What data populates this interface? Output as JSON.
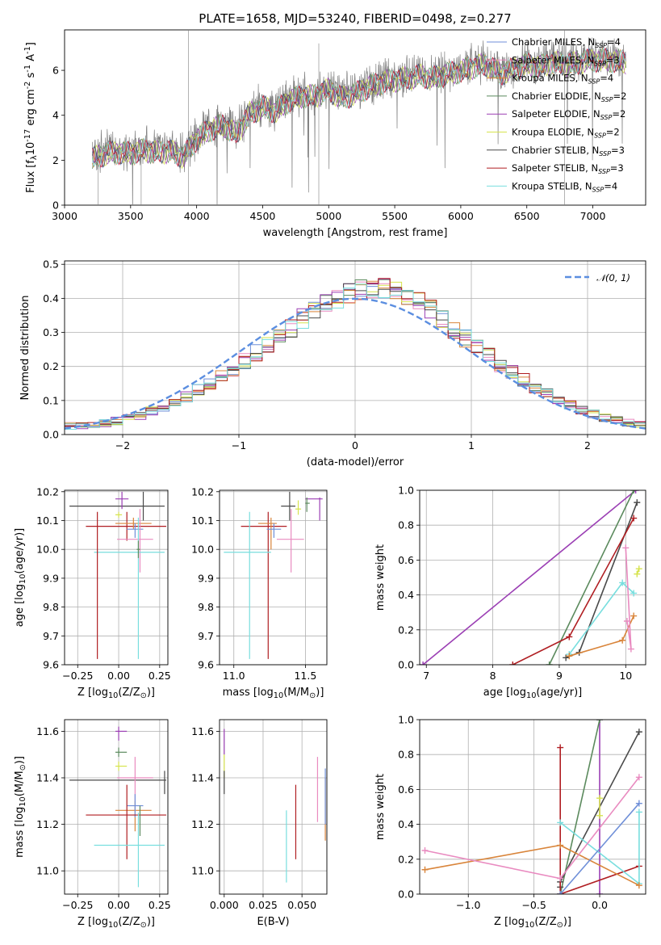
{
  "colors": {
    "Chabrier MILES": "#6f8fd8",
    "Salpeter MILES": "#e98bc0",
    "Kroupa MILES": "#d9853b",
    "Chabrier ELODIE": "#5b8a5d",
    "Salpeter ELODIE": "#9b3fb4",
    "Kroupa ELODIE": "#d6e34d",
    "Chabrier STELIB": "#4a4a4a",
    "Salpeter STELIB": "#b01e22",
    "Kroupa STELIB": "#78dede",
    "data": "#808080",
    "normal": "#5b8ee0"
  },
  "chart_data": [
    {
      "id": "spectrum",
      "type": "line",
      "title": "PLATE=1658, MJD=53240, FIBERID=0498, z=0.277",
      "xlabel": "wavelength [Angstrom, rest frame]",
      "ylabel": "Flux [f$_\\lambda$10$^{-17}$ erg cm$^{-2}$ s$^{-1}$ A$^{-1}$]",
      "xlim": [
        3000,
        7400
      ],
      "ylim": [
        0,
        7.8
      ],
      "xticks": [
        "3000",
        "3500",
        "4000",
        "4500",
        "5000",
        "5500",
        "6000",
        "6500",
        "7000"
      ],
      "yticks": [
        "0",
        "2",
        "4",
        "6"
      ],
      "grid": false,
      "legend_position": "top-right",
      "legend": [
        {
          "series": "Chabrier MILES",
          "label": "Chabrier MILES, N_SSP=4"
        },
        {
          "series": "Salpeter MILES",
          "label": "Salpeter MILES, N_SSP=3"
        },
        {
          "series": "Kroupa MILES",
          "label": "Kroupa MILES, N_SSP=4"
        },
        {
          "series": "Chabrier ELODIE",
          "label": "Chabrier ELODIE, N_SSP=2"
        },
        {
          "series": "Salpeter ELODIE",
          "label": "Salpeter ELODIE, N_SSP=2"
        },
        {
          "series": "Kroupa ELODIE",
          "label": "Kroupa ELODIE, N_SSP=2"
        },
        {
          "series": "Chabrier STELIB",
          "label": "Chabrier STELIB, N_SSP=3"
        },
        {
          "series": "Salpeter STELIB",
          "label": "Salpeter STELIB, N_SSP=3"
        },
        {
          "series": "Kroupa STELIB",
          "label": "Kroupa STELIB, N_SSP=4"
        }
      ],
      "data_wavelength_range": [
        3210,
        7250
      ],
      "continuum": {
        "x": [
          3210,
          3300,
          3400,
          3500,
          3600,
          3700,
          3800,
          3900,
          4000,
          4100,
          4200,
          4300,
          4400,
          4500,
          4600,
          4700,
          4800,
          4900,
          5000,
          5100,
          5200,
          5300,
          5400,
          5500,
          5600,
          5700,
          5800,
          5900,
          6000,
          6100,
          6200,
          6300,
          6400,
          6500,
          6600,
          6700,
          6800,
          6900,
          7000,
          7100,
          7250
        ],
        "y": [
          2.2,
          2.4,
          2.5,
          2.45,
          2.6,
          2.5,
          2.55,
          2.3,
          3.1,
          3.5,
          3.7,
          3.3,
          4.2,
          4.5,
          4.3,
          4.8,
          5.0,
          5.0,
          5.3,
          4.9,
          5.1,
          5.4,
          5.6,
          5.7,
          5.8,
          5.9,
          5.8,
          6.0,
          6.1,
          6.3,
          6.4,
          6.0,
          6.2,
          6.4,
          6.3,
          6.5,
          6.4,
          6.5,
          6.6,
          6.6,
          6.5
        ]
      },
      "noise_amplitude": 1.1
    },
    {
      "id": "residuals",
      "type": "line",
      "xlabel": "(data-model)/error",
      "ylabel": "Normed distribution",
      "xlim": [
        -2.5,
        2.5
      ],
      "ylim": [
        0,
        0.51
      ],
      "xticks": [
        -2,
        -1,
        0,
        1,
        2
      ],
      "yticks": [
        0.0,
        0.1,
        0.2,
        0.3,
        0.4,
        0.5
      ],
      "xtick_labels": [
        "−2",
        "−1",
        "0",
        "1",
        "2"
      ],
      "ytick_labels": [
        "0.0",
        "0.1",
        "0.2",
        "0.3",
        "0.4",
        "0.5"
      ],
      "grid": true,
      "legend_position": "top-right",
      "legend": [
        "𝒩(0, 1)"
      ],
      "bins": {
        "start": -2.5,
        "width": 0.1,
        "count": 50
      },
      "histogram_base": [
        0.025,
        0.027,
        0.03,
        0.034,
        0.04,
        0.048,
        0.057,
        0.068,
        0.081,
        0.096,
        0.112,
        0.13,
        0.15,
        0.171,
        0.193,
        0.216,
        0.24,
        0.265,
        0.29,
        0.315,
        0.34,
        0.362,
        0.382,
        0.4,
        0.415,
        0.425,
        0.43,
        0.43,
        0.425,
        0.41,
        0.39,
        0.365,
        0.338,
        0.31,
        0.283,
        0.256,
        0.23,
        0.205,
        0.182,
        0.16,
        0.14,
        0.12,
        0.1,
        0.085,
        0.071,
        0.06,
        0.05,
        0.042,
        0.036,
        0.032
      ],
      "histogram_spread": 0.03,
      "normal_curve": {
        "mean": 0,
        "sigma": 1,
        "peak": 0.399
      }
    },
    {
      "id": "age_vs_Z",
      "type": "scatter",
      "xlabel": "Z [log$_{10}$(Z/Z$_\\odot$)]",
      "ylabel": "age  [log$_{10}$(age/yr)]",
      "xlim": [
        -0.33,
        0.3
      ],
      "ylim": [
        9.6,
        10.205
      ],
      "xticks": [
        -0.25,
        0.0,
        0.25
      ],
      "xtick_labels": [
        "−0.25",
        "0.00",
        "0.25"
      ],
      "yticks": [
        9.6,
        9.7,
        9.8,
        9.9,
        10.0,
        10.1,
        10.2
      ],
      "ytick_labels": [
        "9.6",
        "9.7",
        "9.8",
        "9.9",
        "10.0",
        "10.1",
        "10.2"
      ],
      "grid": true,
      "points": [
        {
          "series": "Chabrier STELIB",
          "x": 0.15,
          "xlo": -0.3,
          "xhi": 0.28,
          "y": 10.15,
          "ylo": 10.1,
          "yhi": 10.2
        },
        {
          "series": "Salpeter ELODIE",
          "x": 0.02,
          "xlo": -0.02,
          "xhi": 0.06,
          "y": 10.175,
          "ylo": 10.14,
          "yhi": 10.2
        },
        {
          "series": "Kroupa ELODIE",
          "x": 0.0,
          "xlo": -0.02,
          "xhi": 0.02,
          "y": 10.12,
          "ylo": 10.11,
          "yhi": 10.13
        },
        {
          "series": "Salpeter STELIB",
          "x": 0.05,
          "xlo": -0.2,
          "xhi": 0.29,
          "y": 10.08,
          "ylo": 10.03,
          "yhi": 10.13
        },
        {
          "series": "Kroupa MILES",
          "x": 0.09,
          "xlo": -0.02,
          "xhi": 0.2,
          "y": 10.09,
          "ylo": 10.07,
          "yhi": 10.11
        },
        {
          "series": "Chabrier MILES",
          "x": 0.1,
          "xlo": 0.05,
          "xhi": 0.15,
          "y": 10.07,
          "ylo": 10.04,
          "yhi": 10.09
        },
        {
          "series": "Salpeter MILES",
          "x": 0.13,
          "xlo": -0.01,
          "xhi": 0.21,
          "y": 10.035,
          "ylo": 9.92,
          "yhi": 10.14
        },
        {
          "series": "Kroupa STELIB",
          "x": 0.12,
          "xlo": -0.15,
          "xhi": 0.28,
          "y": 9.99,
          "ylo": 9.62,
          "yhi": 10.11
        },
        {
          "series": "Salpeter STELIB",
          "x": -0.13,
          "xlo": -0.13,
          "xhi": -0.13,
          "y": 9.62,
          "ylo": 9.62,
          "yhi": 10.13
        },
        {
          "series": "Chabrier ELODIE",
          "x": 0.12,
          "xlo": 0.11,
          "xhi": 0.13,
          "y": 10.0,
          "ylo": 9.97,
          "yhi": 10.03
        }
      ]
    },
    {
      "id": "age_vs_mass",
      "type": "scatter",
      "xlabel": "mass [log$_{10}$(M/M$_\\odot$)]",
      "xlim": [
        10.9,
        11.65
      ],
      "ylim": [
        9.6,
        10.205
      ],
      "xticks": [
        11.0,
        11.5
      ],
      "xtick_labels": [
        "11.0",
        "11.5"
      ],
      "yticks": [
        9.6,
        9.7,
        9.8,
        9.9,
        10.0,
        10.1,
        10.2
      ],
      "ytick_labels": [
        "9.6",
        "9.7",
        "9.8",
        "9.9",
        "10.0",
        "10.1",
        "10.2"
      ],
      "grid": true,
      "points": [
        {
          "series": "Chabrier STELIB",
          "x": 11.39,
          "xlo": 11.33,
          "xhi": 11.43,
          "y": 10.15,
          "ylo": 10.1,
          "yhi": 10.2
        },
        {
          "series": "Salpeter ELODIE",
          "x": 11.6,
          "xlo": 11.5,
          "xhi": 11.62,
          "y": 10.175,
          "ylo": 10.1,
          "yhi": 10.18
        },
        {
          "series": "Kroupa ELODIE",
          "x": 11.45,
          "xlo": 11.43,
          "xhi": 11.47,
          "y": 10.14,
          "ylo": 10.12,
          "yhi": 10.17
        },
        {
          "series": "Chabrier ELODIE",
          "x": 11.51,
          "xlo": 11.5,
          "xhi": 11.53,
          "y": 10.16,
          "ylo": 10.13,
          "yhi": 10.18
        },
        {
          "series": "Salpeter STELIB",
          "x": 11.24,
          "xlo": 11.05,
          "xhi": 11.37,
          "y": 10.08,
          "ylo": 9.62,
          "yhi": 10.13
        },
        {
          "series": "Kroupa MILES",
          "x": 11.26,
          "xlo": 11.17,
          "xhi": 11.3,
          "y": 10.09,
          "ylo": 10.0,
          "yhi": 10.11
        },
        {
          "series": "Chabrier MILES",
          "x": 11.28,
          "xlo": 11.23,
          "xhi": 11.33,
          "y": 10.07,
          "ylo": 10.04,
          "yhi": 10.09
        },
        {
          "series": "Salpeter MILES",
          "x": 11.4,
          "xlo": 11.3,
          "xhi": 11.49,
          "y": 10.035,
          "ylo": 9.92,
          "yhi": 10.14
        },
        {
          "series": "Kroupa STELIB",
          "x": 11.11,
          "xlo": 10.93,
          "xhi": 11.26,
          "y": 9.99,
          "ylo": 9.62,
          "yhi": 10.13
        }
      ]
    },
    {
      "id": "weight_vs_age",
      "type": "line",
      "xlabel": "age  [log$_{10}$(age/yr)]",
      "ylabel": "mass weight",
      "xlim": [
        6.9,
        10.3
      ],
      "ylim": [
        0,
        1.0
      ],
      "xticks": [
        7,
        8,
        9,
        10
      ],
      "xtick_labels": [
        "7",
        "8",
        "9",
        "10"
      ],
      "yticks": [
        0.0,
        0.2,
        0.4,
        0.6,
        0.8,
        1.0
      ],
      "ytick_labels": [
        "0.0",
        "0.2",
        "0.4",
        "0.6",
        "0.8",
        "1.0"
      ],
      "grid": true,
      "series": [
        {
          "name": "Salpeter ELODIE",
          "x": [
            6.95,
            10.15
          ],
          "y": [
            0.0,
            1.0
          ]
        },
        {
          "name": "Chabrier ELODIE",
          "x": [
            8.85,
            10.12
          ],
          "y": [
            0.0,
            1.0
          ]
        },
        {
          "name": "Chabrier STELIB",
          "x": [
            9.1,
            9.3,
            10.17
          ],
          "y": [
            0.04,
            0.07,
            0.93
          ]
        },
        {
          "name": "Salpeter STELIB",
          "x": [
            8.3,
            9.15,
            10.12
          ],
          "y": [
            0.0,
            0.16,
            0.84
          ]
        },
        {
          "name": "Kroupa STELIB",
          "x": [
            9.15,
            9.95,
            10.12
          ],
          "y": [
            0.06,
            0.47,
            0.41
          ]
        },
        {
          "name": "Kroupa MILES",
          "x": [
            9.15,
            9.95,
            10.12
          ],
          "y": [
            0.05,
            0.14,
            0.28
          ]
        },
        {
          "name": "Salpeter MILES",
          "x": [
            10.0,
            10.08,
            10.02
          ],
          "y": [
            0.67,
            0.09,
            0.25
          ]
        },
        {
          "name": "Kroupa ELODIE",
          "x": [
            10.17,
            10.2
          ],
          "y": [
            0.52,
            0.55
          ]
        }
      ]
    },
    {
      "id": "mass_vs_Z",
      "type": "scatter",
      "xlabel": "Z [log$_{10}$(Z/Z$_\\odot$)]",
      "ylabel": "mass [log$_{10}$(M/M$_\\odot$)]",
      "xlim": [
        -0.33,
        0.3
      ],
      "ylim": [
        10.9,
        11.65
      ],
      "xticks": [
        -0.25,
        0.0,
        0.25
      ],
      "xtick_labels": [
        "−0.25",
        "0.00",
        "0.25"
      ],
      "yticks": [
        11.0,
        11.2,
        11.4,
        11.6
      ],
      "ytick_labels": [
        "11.0",
        "11.2",
        "11.4",
        "11.6"
      ],
      "grid": true,
      "points": [
        {
          "series": "Salpeter ELODIE",
          "x": 0.0,
          "xlo": -0.02,
          "xhi": 0.05,
          "y": 11.6,
          "ylo": 11.56,
          "yhi": 11.62
        },
        {
          "series": "Chabrier ELODIE",
          "x": 0.0,
          "xlo": -0.02,
          "xhi": 0.05,
          "y": 11.51,
          "ylo": 11.49,
          "yhi": 11.53
        },
        {
          "series": "Kroupa ELODIE",
          "x": 0.0,
          "xlo": -0.02,
          "xhi": 0.05,
          "y": 11.45,
          "ylo": 11.43,
          "yhi": 11.47
        },
        {
          "series": "Chabrier STELIB",
          "x": 0.28,
          "xlo": -0.3,
          "xhi": 0.29,
          "y": 11.39,
          "ylo": 11.33,
          "yhi": 11.43
        },
        {
          "series": "Salpeter MILES",
          "x": 0.1,
          "xlo": -0.01,
          "xhi": 0.21,
          "y": 11.4,
          "ylo": 11.3,
          "yhi": 11.49
        },
        {
          "series": "Kroupa MILES",
          "x": 0.1,
          "xlo": -0.02,
          "xhi": 0.2,
          "y": 11.26,
          "ylo": 11.17,
          "yhi": 11.3
        },
        {
          "series": "Chabrier MILES",
          "x": 0.1,
          "xlo": 0.05,
          "xhi": 0.15,
          "y": 11.28,
          "ylo": 11.23,
          "yhi": 11.33
        },
        {
          "series": "Salpeter STELIB",
          "x": 0.05,
          "xlo": -0.2,
          "xhi": 0.29,
          "y": 11.24,
          "ylo": 11.05,
          "yhi": 11.37
        },
        {
          "series": "Chabrier ELODIE",
          "x": 0.13,
          "xlo": 0.13,
          "xhi": 0.13,
          "y": 11.2,
          "ylo": 11.15,
          "yhi": 11.28
        },
        {
          "series": "Kroupa STELIB",
          "x": 0.12,
          "xlo": -0.15,
          "xhi": 0.28,
          "y": 11.11,
          "ylo": 10.93,
          "yhi": 11.25
        }
      ]
    },
    {
      "id": "mass_vs_EBV",
      "type": "scatter",
      "xlabel": "E(B-V)",
      "xlim": [
        -0.003,
        0.066
      ],
      "ylim": [
        10.9,
        11.65
      ],
      "xticks": [
        0.0,
        0.025,
        0.05
      ],
      "xtick_labels": [
        "0.000",
        "0.025",
        "0.050"
      ],
      "yticks": [
        11.0,
        11.2,
        11.4,
        11.6
      ],
      "ytick_labels": [
        "11.0",
        "11.2",
        "11.4",
        "11.6"
      ],
      "grid": true,
      "points": [
        {
          "series": "Salpeter ELODIE",
          "x": 0.0,
          "xlo": 0.0,
          "xhi": 0.0,
          "y": 11.6,
          "ylo": 11.5,
          "yhi": 11.61
        },
        {
          "series": "Kroupa ELODIE",
          "x": 0.0,
          "xlo": 0.0,
          "xhi": 0.0,
          "y": 11.45,
          "ylo": 11.4,
          "yhi": 11.5
        },
        {
          "series": "Chabrier STELIB",
          "x": 0.0,
          "xlo": 0.0,
          "xhi": 0.0,
          "y": 11.39,
          "ylo": 11.33,
          "yhi": 11.43
        },
        {
          "series": "Kroupa STELIB",
          "x": 0.04,
          "xlo": 0.04,
          "xhi": 0.04,
          "y": 11.11,
          "ylo": 10.95,
          "yhi": 11.26
        },
        {
          "series": "Salpeter STELIB",
          "x": 0.046,
          "xlo": 0.046,
          "xhi": 0.046,
          "y": 11.24,
          "ylo": 11.05,
          "yhi": 11.37
        },
        {
          "series": "Salpeter MILES",
          "x": 0.06,
          "xlo": 0.06,
          "xhi": 0.06,
          "y": 11.4,
          "ylo": 11.21,
          "yhi": 11.49
        },
        {
          "series": "Kroupa MILES",
          "x": 0.065,
          "xlo": 0.065,
          "xhi": 0.065,
          "y": 11.26,
          "ylo": 11.13,
          "yhi": 11.4
        },
        {
          "series": "Chabrier MILES",
          "x": 0.065,
          "xlo": 0.065,
          "xhi": 0.065,
          "y": 11.28,
          "ylo": 11.2,
          "yhi": 11.44
        }
      ]
    },
    {
      "id": "weight_vs_Z",
      "type": "line",
      "xlabel": "Z [log$_{10}$(Z/Z$_\\odot$)]",
      "ylabel": "mass weight",
      "xlim": [
        -1.37,
        0.35
      ],
      "ylim": [
        0,
        1.0
      ],
      "xticks": [
        -1.0,
        -0.5,
        0.0
      ],
      "xtick_labels": [
        "−1.0",
        "−0.5",
        "0.0"
      ],
      "yticks": [
        0.0,
        0.2,
        0.4,
        0.6,
        0.8,
        1.0
      ],
      "ytick_labels": [
        "0.0",
        "0.2",
        "0.4",
        "0.6",
        "0.8",
        "1.0"
      ],
      "grid": true,
      "series": [
        {
          "name": "Salpeter ELODIE",
          "x": [
            0.0,
            0.0
          ],
          "y": [
            0.0,
            1.0
          ]
        },
        {
          "name": "Chabrier ELODIE",
          "x": [
            -0.3,
            0.0
          ],
          "y": [
            0.0,
            1.0
          ]
        },
        {
          "name": "Chabrier STELIB",
          "x": [
            -0.3,
            -0.3,
            0.3
          ],
          "y": [
            0.04,
            0.07,
            0.93
          ]
        },
        {
          "name": "Salpeter STELIB",
          "x": [
            -0.3,
            -0.3,
            0.3
          ],
          "y": [
            0.84,
            0.0,
            0.16
          ]
        },
        {
          "name": "Kroupa STELIB",
          "x": [
            -0.3,
            0.3,
            0.3
          ],
          "y": [
            0.41,
            0.06,
            0.47
          ]
        },
        {
          "name": "Kroupa MILES",
          "x": [
            -1.33,
            -0.3,
            0.3
          ],
          "y": [
            0.14,
            0.28,
            0.05
          ]
        },
        {
          "name": "Salpeter MILES",
          "x": [
            -1.33,
            -0.3,
            0.3
          ],
          "y": [
            0.25,
            0.09,
            0.67
          ]
        },
        {
          "name": "Chabrier MILES",
          "x": [
            -0.3,
            0.3
          ],
          "y": [
            0.0,
            0.52
          ]
        },
        {
          "name": "Kroupa ELODIE",
          "x": [
            0.0,
            0.0
          ],
          "y": [
            0.45,
            0.55
          ]
        }
      ]
    }
  ]
}
